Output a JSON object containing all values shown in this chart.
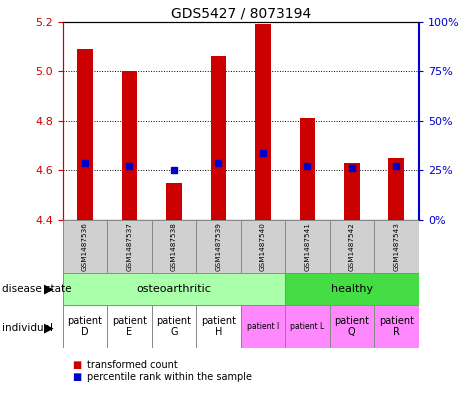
{
  "title": "GDS5427 / 8073194",
  "samples": [
    "GSM1487536",
    "GSM1487537",
    "GSM1487538",
    "GSM1487539",
    "GSM1487540",
    "GSM1487541",
    "GSM1487542",
    "GSM1487543"
  ],
  "bar_values": [
    5.09,
    5.0,
    4.55,
    5.06,
    5.19,
    4.81,
    4.63,
    4.65
  ],
  "percentile_values": [
    4.63,
    4.62,
    4.6,
    4.63,
    4.67,
    4.62,
    4.61,
    4.62
  ],
  "ylim": [
    4.4,
    5.2
  ],
  "yticks": [
    4.4,
    4.6,
    4.8,
    5.0,
    5.2
  ],
  "right_yticks": [
    0,
    25,
    50,
    75,
    100
  ],
  "bar_color": "#cc0000",
  "percentile_color": "#0000cc",
  "bar_width": 0.35,
  "disease_state_colors": [
    "#aaffaa",
    "#44dd44"
  ],
  "individual_colors_white": [
    "#ffffff",
    "#ffffff",
    "#ffffff",
    "#ffffff"
  ],
  "individual_colors_pink": [
    "#ff88ff",
    "#ff88ff",
    "#ff88ff",
    "#ff88ff"
  ],
  "legend_red_label": "transformed count",
  "legend_blue_label": "percentile rank within the sample"
}
